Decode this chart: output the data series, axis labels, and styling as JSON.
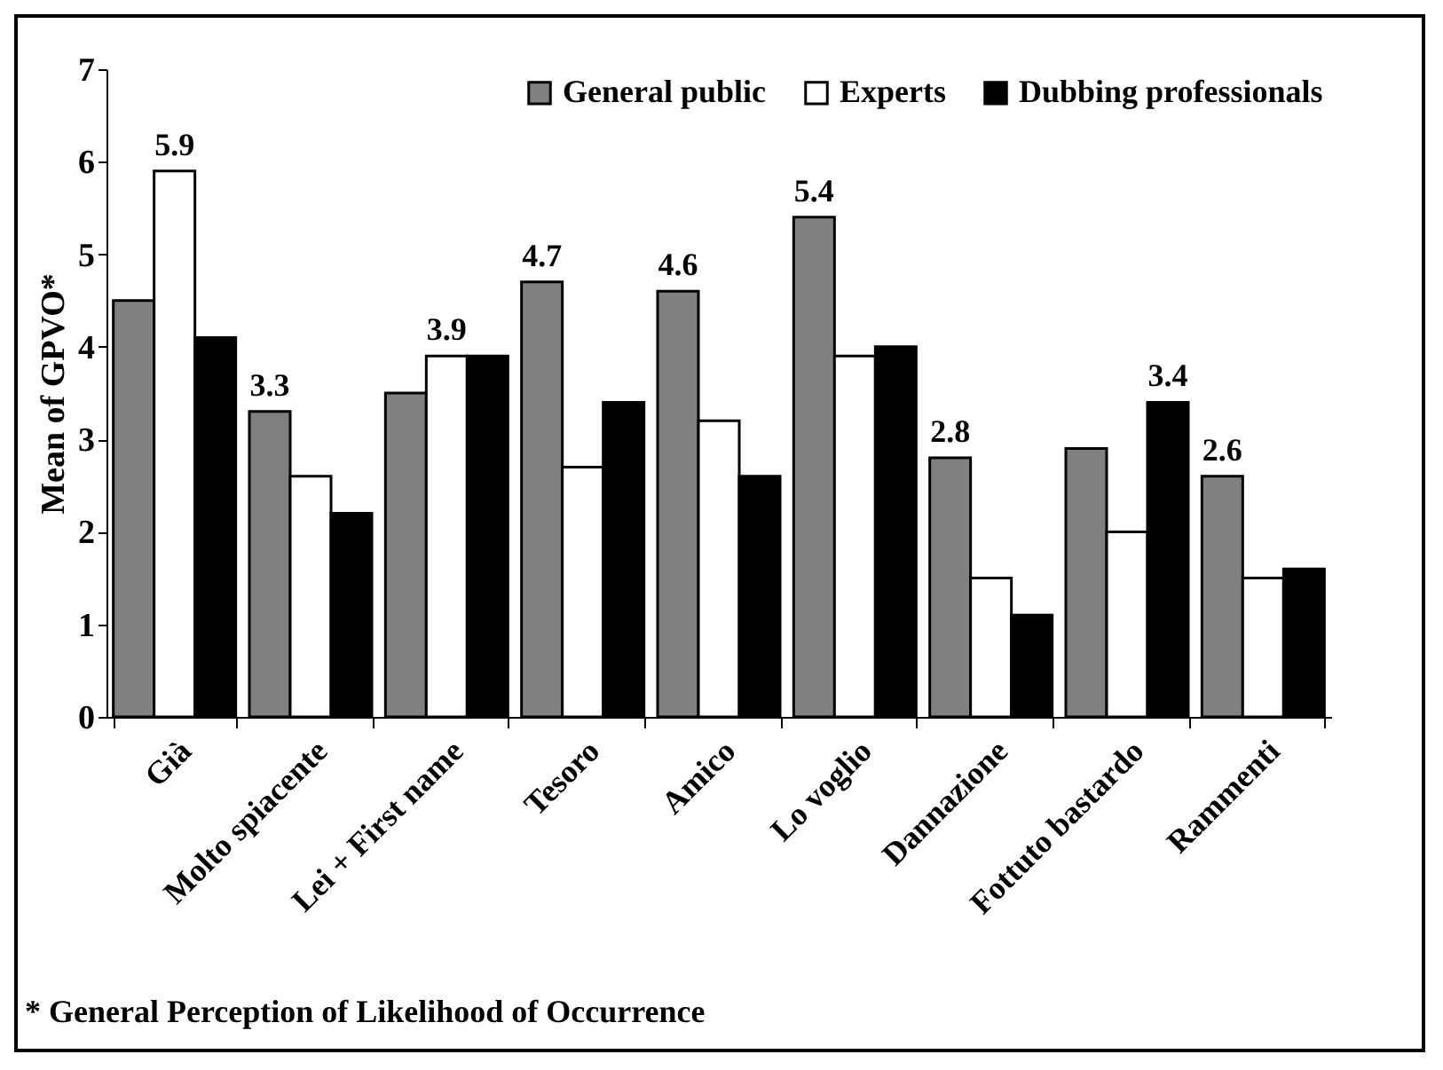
{
  "chart_data": {
    "type": "bar",
    "ylabel": "Mean of GPVO*",
    "categories": [
      "Già",
      "Molto spiacente",
      "Lei + First name",
      "Tesoro",
      "Amico",
      "Lo voglio",
      "Dannazione",
      "Fottuto bastardo",
      "Rammenti"
    ],
    "series": [
      {
        "name": "General public",
        "color": "#808080",
        "values": [
          4.5,
          3.3,
          3.5,
          4.7,
          4.6,
          5.4,
          2.8,
          2.9,
          2.6
        ],
        "value_labels": [
          null,
          "3.3",
          null,
          "4.7",
          "4.6",
          "5.4",
          "2.8",
          null,
          "2.6"
        ]
      },
      {
        "name": "Experts",
        "color": "#ffffff",
        "values": [
          5.9,
          2.6,
          3.9,
          2.7,
          3.2,
          3.9,
          1.5,
          2.0,
          1.5
        ],
        "value_labels": [
          "5.9",
          null,
          "3.9",
          null,
          null,
          null,
          null,
          null,
          null
        ]
      },
      {
        "name": "Dubbing professionals",
        "color": "#000000",
        "values": [
          4.1,
          2.2,
          3.9,
          3.4,
          2.6,
          4.0,
          1.1,
          3.4,
          1.6
        ],
        "value_labels": [
          null,
          null,
          null,
          null,
          null,
          null,
          null,
          "3.4",
          null
        ]
      }
    ],
    "ylim": [
      0,
      7
    ],
    "yticks": [
      0,
      1,
      2,
      3,
      4,
      5,
      6,
      7
    ],
    "grid": false,
    "legend": "top right",
    "annotations": [
      "* General Perception of Likelihood of Occurrence"
    ]
  }
}
